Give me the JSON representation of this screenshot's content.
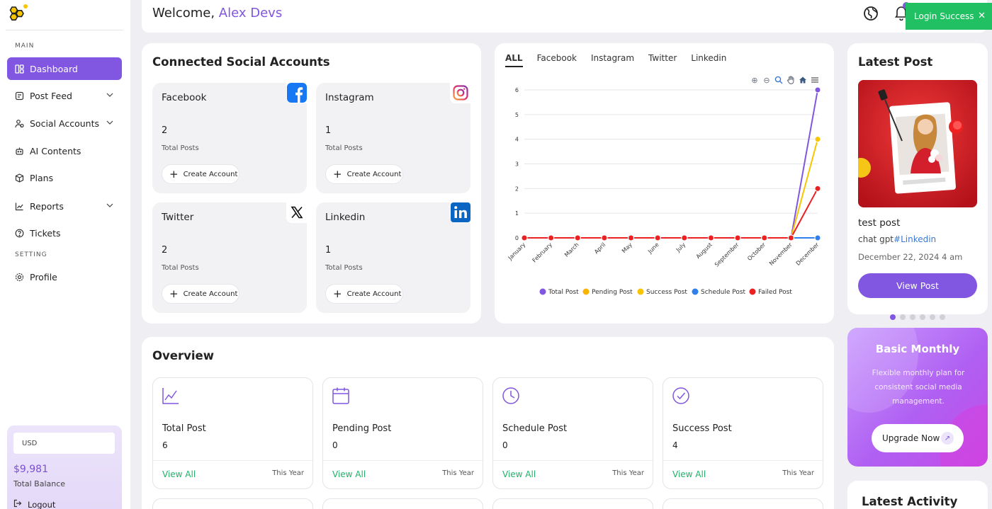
{
  "sidebar": {
    "section_main": "MAIN",
    "section_setting": "SETTING",
    "items": [
      {
        "label": "Dashboard"
      },
      {
        "label": "Post Feed"
      },
      {
        "label": "Social Accounts"
      },
      {
        "label": "AI Contents"
      },
      {
        "label": "Plans"
      },
      {
        "label": "Reports"
      },
      {
        "label": "Tickets"
      },
      {
        "label": "Profile"
      }
    ],
    "balance": {
      "currency": "USD",
      "amount": "$9,981",
      "label": "Total Balance",
      "logout": "Logout"
    }
  },
  "header": {
    "welcome": "Welcome,",
    "user_name": "Alex Devs",
    "toast": "Login Success"
  },
  "connected": {
    "title": "Connected Social Accounts",
    "accounts": [
      {
        "name": "Facebook",
        "count": "2",
        "label": "Total Posts",
        "button": "Create Account",
        "icon_color": "#1877f2"
      },
      {
        "name": "Instagram",
        "count": "1",
        "label": "Total Posts",
        "button": "Create Account",
        "icon_color": "#e1306c"
      },
      {
        "name": "Twitter",
        "count": "2",
        "label": "Total Posts",
        "button": "Create Account",
        "icon_color": "#000000"
      },
      {
        "name": "Linkedin",
        "count": "1",
        "label": "Total Posts",
        "button": "Create Account",
        "icon_color": "#0a66c2"
      }
    ]
  },
  "chart_tabs": [
    "ALL",
    "Facebook",
    "Instagram",
    "Twitter",
    "Linkedin"
  ],
  "chart_data": {
    "type": "line",
    "categories": [
      "January",
      "February",
      "March",
      "April",
      "May",
      "June",
      "July",
      "August",
      "September",
      "October",
      "November",
      "December"
    ],
    "ylim": [
      0,
      6
    ],
    "yticks": [
      "0",
      "1",
      "2",
      "3",
      "4",
      "5",
      "6"
    ],
    "grid": true,
    "legend": "bottom",
    "series": [
      {
        "name": "Total Post",
        "color": "#8156e0",
        "values": [
          0,
          0,
          0,
          0,
          0,
          0,
          0,
          0,
          0,
          0,
          0,
          6
        ]
      },
      {
        "name": "Pending Post",
        "color": "#f7b500",
        "values": [
          0,
          0,
          0,
          0,
          0,
          0,
          0,
          0,
          0,
          0,
          0,
          0
        ]
      },
      {
        "name": "Success Post",
        "color": "#f7c600",
        "values": [
          0,
          0,
          0,
          0,
          0,
          0,
          0,
          0,
          0,
          0,
          0,
          4
        ]
      },
      {
        "name": "Schedule Post",
        "color": "#2f80ed",
        "values": [
          0,
          0,
          0,
          0,
          0,
          0,
          0,
          0,
          0,
          0,
          0,
          0
        ]
      },
      {
        "name": "Failed Post",
        "color": "#eb2020",
        "values": [
          0,
          0,
          0,
          0,
          0,
          0,
          0,
          0,
          0,
          0,
          0,
          2
        ]
      }
    ]
  },
  "latest_post": {
    "title": "Latest Post",
    "post_title": "test post",
    "desc": "chat gpt",
    "tag": "#Linkedin",
    "date": "December 22, 2024 4 am",
    "button": "View Post"
  },
  "plan": {
    "title": "Basic Monthly",
    "desc": "Flexible monthly plan for consistent social media management.",
    "button": "Upgrade Now"
  },
  "overview": {
    "title": "Overview",
    "cards": [
      {
        "title": "Total Post",
        "value": "6",
        "link": "View All",
        "period": "This Year"
      },
      {
        "title": "Pending Post",
        "value": "0",
        "link": "View All",
        "period": "This Year"
      },
      {
        "title": "Schedule Post",
        "value": "0",
        "link": "View All",
        "period": "This Year"
      },
      {
        "title": "Success Post",
        "value": "4",
        "link": "View All",
        "period": "This Year"
      }
    ]
  },
  "latest_activity": {
    "title": "Latest Activity"
  }
}
